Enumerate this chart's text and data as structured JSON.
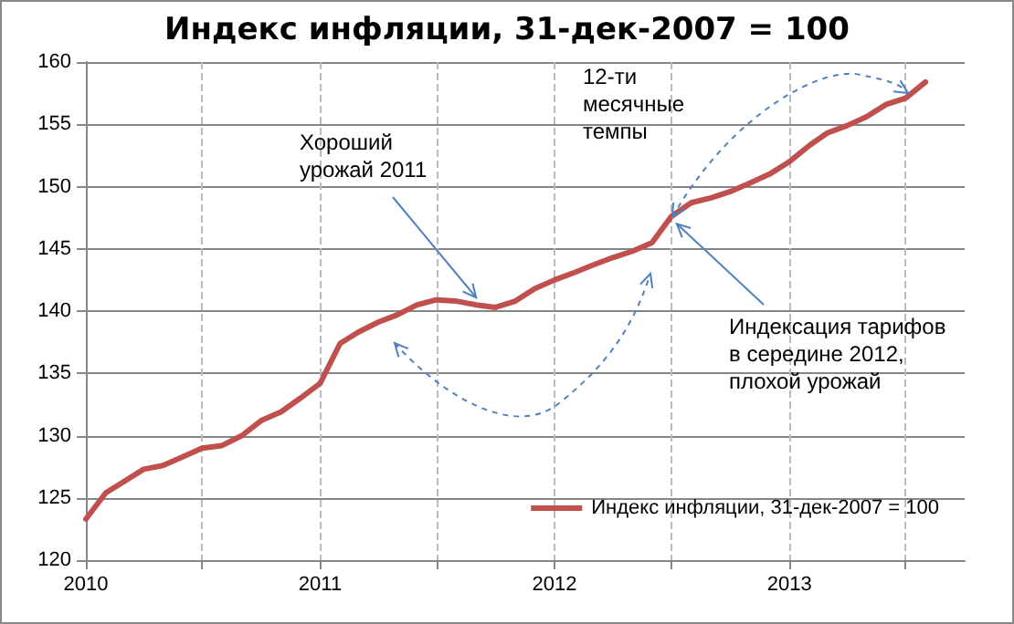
{
  "chart_data": {
    "type": "line",
    "title": "Индекс инфляции, 31-дек-2007 = 100",
    "x": [
      "2010-01",
      "2010-02",
      "2010-03",
      "2010-04",
      "2010-05",
      "2010-06",
      "2010-07",
      "2010-08",
      "2010-09",
      "2010-10",
      "2010-11",
      "2010-12",
      "2011-01",
      "2011-02",
      "2011-03",
      "2011-04",
      "2011-05",
      "2011-06",
      "2011-07",
      "2011-08",
      "2011-09",
      "2011-10",
      "2011-11",
      "2011-12",
      "2012-01",
      "2012-02",
      "2012-03",
      "2012-04",
      "2012-05",
      "2012-06",
      "2012-07",
      "2012-08",
      "2012-09",
      "2012-10",
      "2012-11",
      "2012-12",
      "2013-01",
      "2013-02",
      "2013-03",
      "2013-04",
      "2013-05",
      "2013-06",
      "2013-07",
      "2013-08"
    ],
    "series": [
      {
        "name": "Индекс инфляции, 31-дек-2007 = 100",
        "color": "#c0504d",
        "values": [
          123.3,
          125.4,
          126.3,
          127.3,
          127.6,
          128.3,
          129.0,
          129.2,
          130.0,
          131.2,
          131.9,
          133.0,
          134.2,
          137.4,
          138.3,
          139.1,
          139.7,
          140.5,
          140.9,
          140.8,
          140.5,
          140.3,
          140.8,
          141.8,
          142.5,
          143.1,
          143.7,
          144.3,
          144.8,
          145.5,
          147.6,
          148.7,
          149.1,
          149.6,
          150.3,
          151.0,
          152.0,
          153.3,
          154.3,
          154.9,
          155.6,
          156.6,
          157.1,
          158.4
        ]
      }
    ],
    "xlim": [
      "2010-01",
      "2013-10"
    ],
    "xticks": [
      "2010",
      {
        "value": "2010-07",
        "label": null
      },
      "2011",
      {
        "value": "2011-07",
        "label": null
      },
      "2012",
      {
        "value": "2012-07",
        "label": null
      },
      "2013",
      {
        "value": "2013-07",
        "label": null
      }
    ],
    "ylim": [
      120,
      160
    ],
    "yticks": [
      120,
      125,
      130,
      135,
      140,
      145,
      150,
      155,
      160
    ],
    "annotations": [
      {
        "text": "Хороший урожай 2011",
        "x": "2011-09",
        "y": 140.5
      },
      {
        "text": "Индексация тарифов в середине 2012, плохой урожай",
        "x": "2012-07",
        "y": 147.6
      },
      "12-ти месячные темпы"
    ],
    "grid": true,
    "legend": "bottom right",
    "marker": "none",
    "line_style": "solid"
  }
}
